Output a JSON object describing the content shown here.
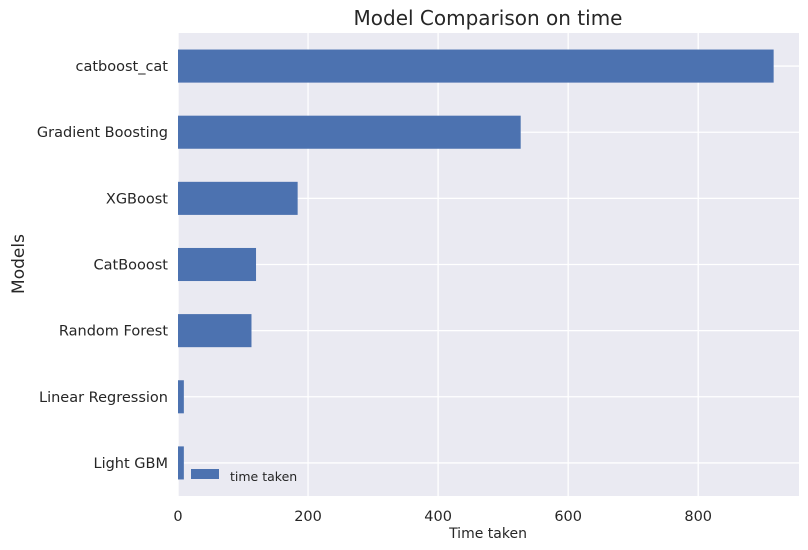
{
  "chart_data": {
    "type": "bar",
    "orientation": "horizontal",
    "title": "Model Comparison on time",
    "xlabel": "Time taken",
    "ylabel": "Models",
    "categories": [
      "Light GBM",
      "Linear Regression",
      "Random Forest",
      "CatBooost",
      "XGBoost",
      "Gradient Boosting",
      "catboost_cat"
    ],
    "series": [
      {
        "name": "time taken",
        "values": [
          9,
          9,
          113,
          120,
          184,
          527,
          916
        ],
        "color": "#4c72b0"
      }
    ],
    "xlim": [
      0,
      955
    ],
    "xticks": [
      0,
      200,
      400,
      600,
      800
    ],
    "grid": true,
    "legend_position": "lower-left",
    "background_color": "#eaeaf2",
    "grid_color": "#ffffff"
  }
}
